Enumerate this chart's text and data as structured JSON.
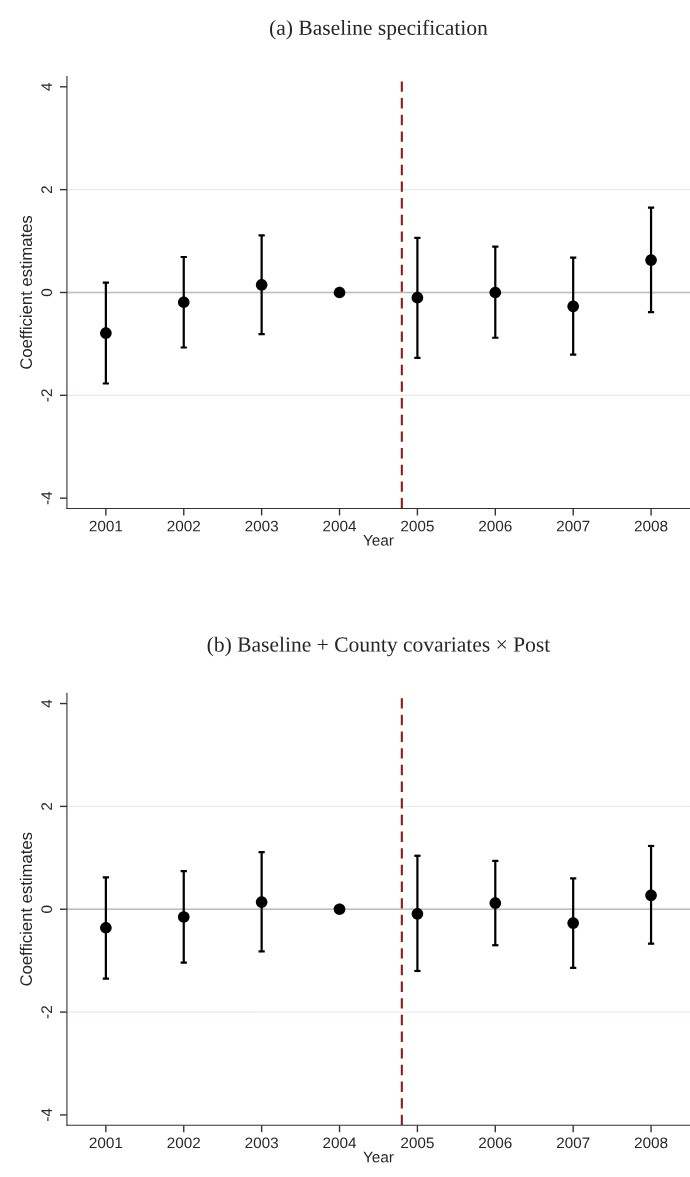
{
  "chart_data": [
    {
      "type": "scatter",
      "title": "(a) Baseline specification",
      "xlabel": "Year",
      "ylabel": "Coefficient estimates",
      "x": [
        2001,
        2002,
        2003,
        2004,
        2005,
        2006,
        2007,
        2008
      ],
      "series": [
        {
          "color": "#000000",
          "values": [
            -0.79,
            -0.19,
            0.15,
            0,
            -0.1,
            0,
            -0.27,
            0.63
          ],
          "errors": [
            [
              -1.77,
              0.19
            ],
            [
              -1.07,
              0.69
            ],
            [
              -0.81,
              1.11
            ],
            null,
            [
              -1.27,
              1.06
            ],
            [
              -0.88,
              0.89
            ],
            [
              -1.21,
              0.68
            ],
            [
              -0.38,
              1.65
            ]
          ]
        }
      ],
      "xlim": [
        2000.5,
        2008.5
      ],
      "xticks": [
        2001,
        2002,
        2003,
        2004,
        2005,
        2006,
        2007,
        2008
      ],
      "ylim": [
        -4.2,
        4.2
      ],
      "yticks": [
        -4,
        -2,
        0,
        2,
        4
      ],
      "ref_lines": [
        {
          "axis": "y",
          "value": 0,
          "color": "#bdbdbd",
          "line_style": "solid"
        },
        {
          "axis": "x",
          "value": 2004.8,
          "color": "#8b1a1a",
          "line_style": "dashed"
        }
      ],
      "grid": "y",
      "marker": "circle",
      "legend": false
    },
    {
      "type": "scatter",
      "title": "(b) Baseline + County covariates × Post",
      "xlabel": "Year",
      "ylabel": "Coefficient estimates",
      "x": [
        2001,
        2002,
        2003,
        2004,
        2005,
        2006,
        2007,
        2008
      ],
      "series": [
        {
          "color": "#000000",
          "values": [
            -0.36,
            -0.15,
            0.14,
            0,
            -0.09,
            0.12,
            -0.27,
            0.27
          ],
          "errors": [
            [
              -1.35,
              0.62
            ],
            [
              -1.04,
              0.74
            ],
            [
              -0.82,
              1.11
            ],
            null,
            [
              -1.2,
              1.04
            ],
            [
              -0.7,
              0.94
            ],
            [
              -1.14,
              0.6
            ],
            [
              -0.67,
              1.23
            ]
          ]
        }
      ],
      "xlim": [
        2000.5,
        2008.5
      ],
      "xticks": [
        2001,
        2002,
        2003,
        2004,
        2005,
        2006,
        2007,
        2008
      ],
      "ylim": [
        -4.2,
        4.2
      ],
      "yticks": [
        -4,
        -2,
        0,
        2,
        4
      ],
      "ref_lines": [
        {
          "axis": "y",
          "value": 0,
          "color": "#bdbdbd",
          "line_style": "solid"
        },
        {
          "axis": "x",
          "value": 2004.8,
          "color": "#8b1a1a",
          "line_style": "dashed"
        }
      ],
      "grid": "y",
      "marker": "circle",
      "legend": false
    }
  ]
}
